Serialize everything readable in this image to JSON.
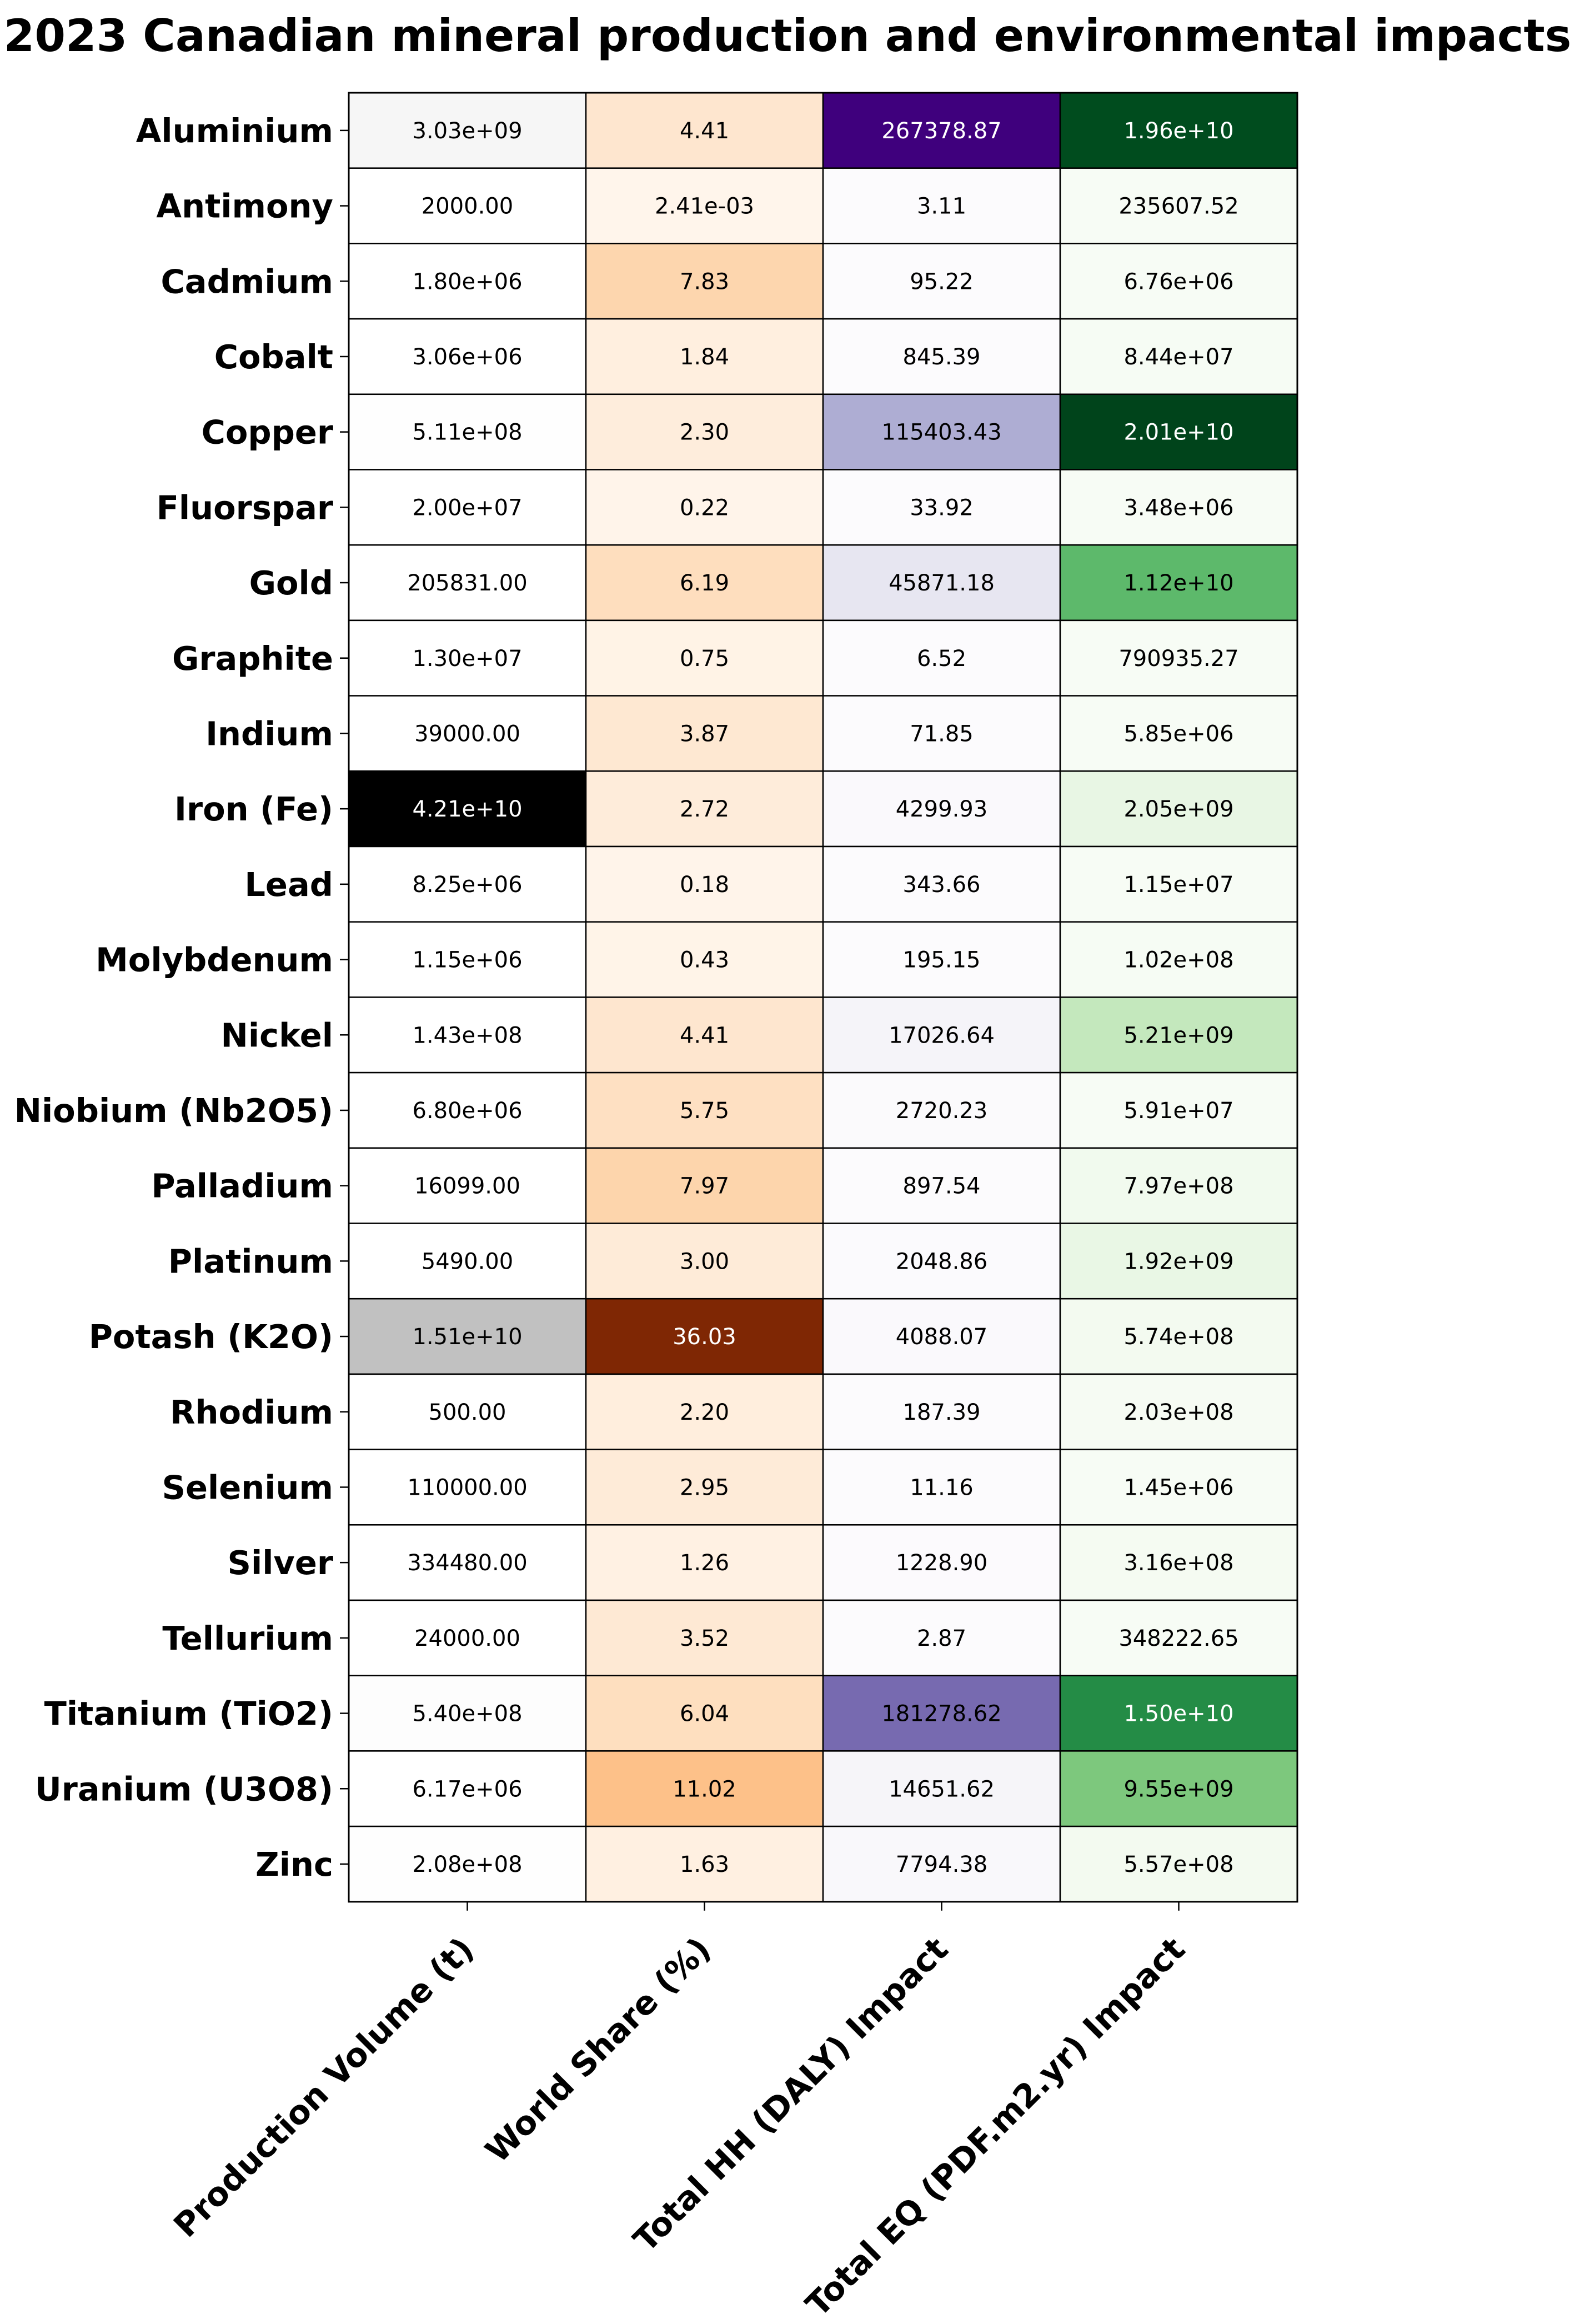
{
  "chart_data": {
    "type": "heatmap",
    "title": "2023 Canadian mineral production and environmental impacts",
    "rows": [
      "Aluminium",
      "Antimony",
      "Cadmium",
      "Cobalt",
      "Copper",
      "Fluorspar",
      "Gold",
      "Graphite",
      "Indium",
      "Iron (Fe)",
      "Lead",
      "Molybdenum",
      "Nickel",
      "Niobium (Nb2O5)",
      "Palladium",
      "Platinum",
      "Potash (K2O)",
      "Rhodium",
      "Selenium",
      "Silver",
      "Tellurium",
      "Titanium (TiO2)",
      "Uranium (U3O8)",
      "Zinc"
    ],
    "columns": [
      {
        "name": "Production Volume (t)",
        "colormap": "Greys",
        "values": [
          3030000000.0,
          2000,
          1800000.0,
          3060000.0,
          511000000.0,
          20000000.0,
          205831,
          13000000.0,
          39000,
          42100000000.0,
          8250000.0,
          1150000.0,
          143000000.0,
          6800000.0,
          16099,
          5490,
          15100000000.0,
          500,
          110000,
          334480,
          24000,
          540000000.0,
          6170000.0,
          208000000.0
        ],
        "labels": [
          "3.03e+09",
          "2000.00",
          "1.80e+06",
          "3.06e+06",
          "5.11e+08",
          "2.00e+07",
          "205831.00",
          "1.30e+07",
          "39000.00",
          "4.21e+10",
          "8.25e+06",
          "1.15e+06",
          "1.43e+08",
          "6.80e+06",
          "16099.00",
          "5490.00",
          "1.51e+10",
          "500.00",
          "110000.00",
          "334480.00",
          "24000.00",
          "5.40e+08",
          "6.17e+06",
          "2.08e+08"
        ]
      },
      {
        "name": "World Share (%)",
        "colormap": "Oranges",
        "values": [
          4.41,
          0.00241,
          7.83,
          1.84,
          2.3,
          0.22,
          6.19,
          0.75,
          3.87,
          2.72,
          0.18,
          0.43,
          4.41,
          5.75,
          7.97,
          3.0,
          36.03,
          2.2,
          2.95,
          1.26,
          3.52,
          6.04,
          11.02,
          1.63
        ],
        "labels": [
          "4.41",
          "2.41e-03",
          "7.83",
          "1.84",
          "2.30",
          "0.22",
          "6.19",
          "0.75",
          "3.87",
          "2.72",
          "0.18",
          "0.43",
          "4.41",
          "5.75",
          "7.97",
          "3.00",
          "36.03",
          "2.20",
          "2.95",
          "1.26",
          "3.52",
          "6.04",
          "11.02",
          "1.63"
        ]
      },
      {
        "name": "Total HH (DALY) Impact",
        "colormap": "Purples",
        "values": [
          267378.87,
          3.11,
          95.22,
          845.39,
          115403.43,
          33.92,
          45871.18,
          6.52,
          71.85,
          4299.93,
          343.66,
          195.15,
          17026.64,
          2720.23,
          897.54,
          2048.86,
          4088.07,
          187.39,
          11.16,
          1228.9,
          2.87,
          181278.62,
          14651.62,
          7794.38
        ],
        "labels": [
          "267378.87",
          "3.11",
          "95.22",
          "845.39",
          "115403.43",
          "33.92",
          "45871.18",
          "6.52",
          "71.85",
          "4299.93",
          "343.66",
          "195.15",
          "17026.64",
          "2720.23",
          "897.54",
          "2048.86",
          "4088.07",
          "187.39",
          "11.16",
          "1228.90",
          "2.87",
          "181278.62",
          "14651.62",
          "7794.38"
        ]
      },
      {
        "name": "Total EQ (PDF.m2.yr) Impact",
        "colormap": "Greens",
        "values": [
          19600000000.0,
          235607.52,
          6760000.0,
          84400000.0,
          20100000000.0,
          3480000.0,
          11200000000.0,
          790935.27,
          5850000.0,
          2050000000.0,
          11500000.0,
          102000000.0,
          5210000000.0,
          59100000.0,
          797000000.0,
          1920000000.0,
          574000000.0,
          203000000.0,
          1450000.0,
          316000000.0,
          348222.65,
          15000000000.0,
          9550000000.0,
          557000000.0
        ],
        "labels": [
          "1.96e+10",
          "235607.52",
          "6.76e+06",
          "8.44e+07",
          "2.01e+10",
          "3.48e+06",
          "1.12e+10",
          "790935.27",
          "5.85e+06",
          "2.05e+09",
          "1.15e+07",
          "1.02e+08",
          "5.21e+09",
          "5.91e+07",
          "7.97e+08",
          "1.92e+09",
          "5.74e+08",
          "2.03e+08",
          "1.45e+06",
          "3.16e+08",
          "348222.65",
          "1.50e+10",
          "9.55e+09",
          "5.57e+08"
        ]
      }
    ],
    "colors": {
      "Greys": [
        "#ffffff",
        "#000000"
      ],
      "Oranges": [
        "#fff5eb",
        "#7f2704"
      ],
      "Purples": [
        "#fcfbfd",
        "#3f007d"
      ],
      "Greens": [
        "#f7fcf5",
        "#00441b"
      ]
    },
    "grid": true,
    "legend": "none"
  }
}
